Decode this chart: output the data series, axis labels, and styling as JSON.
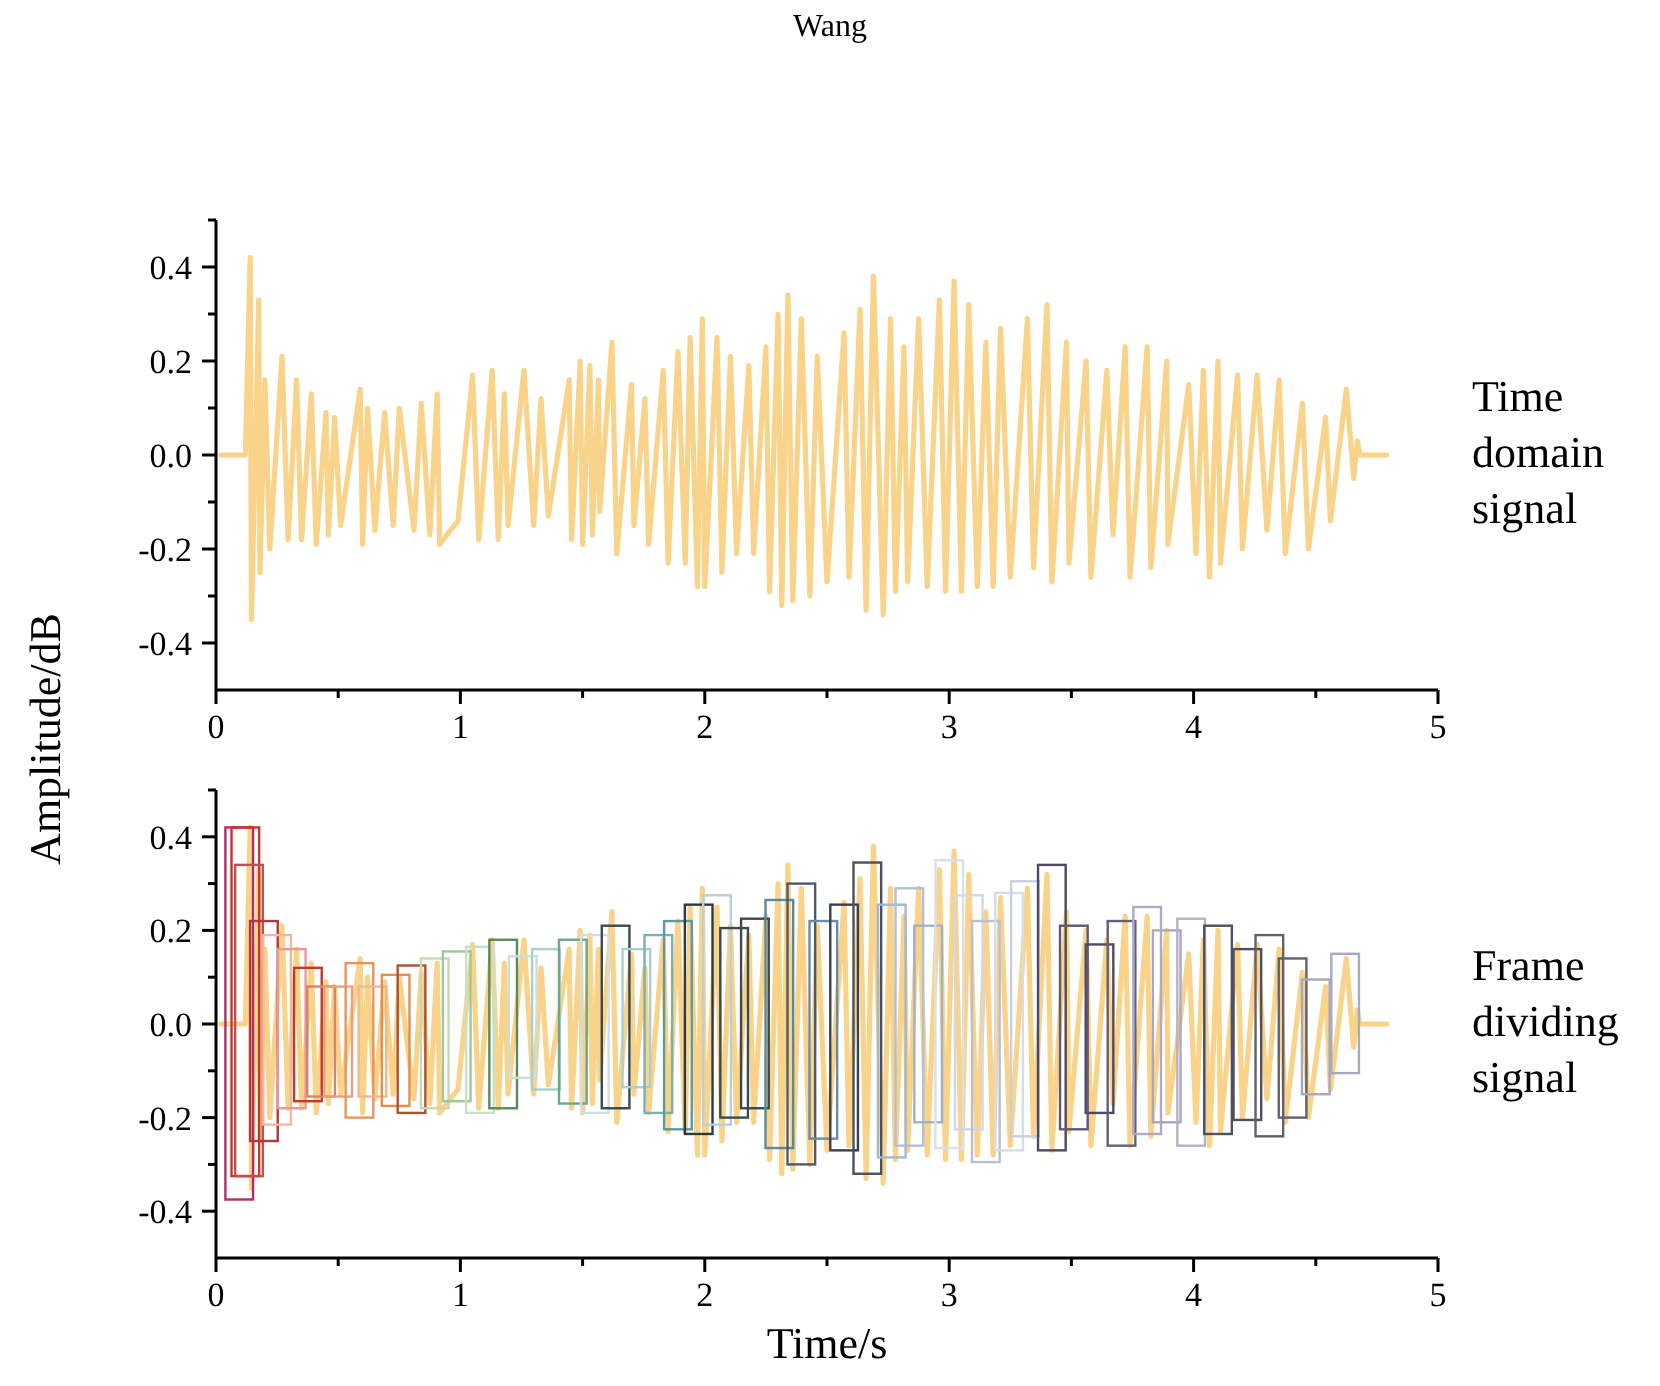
{
  "chart_data": [
    {
      "type": "line",
      "title": "Wang",
      "ylabel": "Amplitude/dB",
      "annotations": [
        "Time domain signal"
      ],
      "xlim": [
        0,
        5
      ],
      "xticks": [
        0,
        {
          "value": 0.5,
          "label": null
        },
        1,
        {
          "value": 1.5,
          "label": null
        },
        2,
        {
          "value": 2.5,
          "label": null
        },
        3,
        {
          "value": 3.5,
          "label": null
        },
        4,
        {
          "value": 4.5,
          "label": null
        },
        5
      ],
      "ylim": [
        -0.5,
        0.5
      ],
      "yticks": [
        -0.4,
        {
          "value": -0.3,
          "label": null
        },
        -0.2,
        {
          "value": -0.1,
          "label": null
        },
        {
          "value": 0,
          "label": "0.0"
        },
        {
          "value": 0.1,
          "label": null
        },
        0.2,
        {
          "value": 0.3,
          "label": null
        },
        0.4,
        {
          "value": 0.5,
          "label": null
        }
      ],
      "grid": false,
      "series": [
        {
          "color": "#f9d38a",
          "x": [
            0.02,
            0.12,
            0.14,
            0.145,
            0.175,
            0.18,
            0.2,
            0.22,
            0.27,
            0.295,
            0.33,
            0.35,
            0.39,
            0.41,
            0.45,
            0.46,
            0.485,
            0.51,
            0.59,
            0.6,
            0.62,
            0.65,
            0.69,
            0.725,
            0.75,
            0.81,
            0.84,
            0.875,
            0.905,
            0.915,
            0.99,
            1.05,
            1.075,
            1.13,
            1.155,
            1.18,
            1.195,
            1.26,
            1.3,
            1.33,
            1.36,
            1.445,
            1.455,
            1.49,
            1.5,
            1.53,
            1.54,
            1.565,
            1.57,
            1.62,
            1.64,
            1.7,
            1.71,
            1.755,
            1.77,
            1.83,
            1.85,
            1.89,
            1.92,
            1.94,
            1.97,
            1.99,
            2,
            2.05,
            2.07,
            2.105,
            2.13,
            2.18,
            2.2,
            2.25,
            2.265,
            2.3,
            2.315,
            2.34,
            2.36,
            2.395,
            2.43,
            2.46,
            2.5,
            2.57,
            2.59,
            2.635,
            2.66,
            2.69,
            2.73,
            2.76,
            2.78,
            2.815,
            2.83,
            2.875,
            2.91,
            2.96,
            2.985,
            3.02,
            3.05,
            3.08,
            3.115,
            3.15,
            3.18,
            3.21,
            3.25,
            3.32,
            3.345,
            3.4,
            3.42,
            3.48,
            3.49,
            3.56,
            3.58,
            3.645,
            3.67,
            3.72,
            3.74,
            3.81,
            3.825,
            3.89,
            3.895,
            3.98,
            4.01,
            4.04,
            4.065,
            4.1,
            4.11,
            4.18,
            4.2,
            4.26,
            4.3,
            4.35,
            4.375,
            4.445,
            4.47,
            4.54,
            4.56,
            4.625,
            4.655,
            4.67,
            4.68,
            4.79
          ],
          "values": [
            0,
            0,
            0.42,
            -0.35,
            0.33,
            -0.25,
            0.16,
            -0.2,
            0.21,
            -0.18,
            0.16,
            -0.18,
            0.13,
            -0.19,
            0.09,
            -0.17,
            0.08,
            -0.15,
            0.14,
            -0.19,
            0.1,
            -0.16,
            0.09,
            -0.15,
            0.1,
            -0.16,
            0.11,
            -0.17,
            0.13,
            -0.19,
            -0.14,
            0.17,
            -0.18,
            0.18,
            -0.18,
            0.13,
            -0.15,
            0.18,
            -0.15,
            0.12,
            -0.13,
            0.16,
            -0.18,
            0.2,
            -0.19,
            0.19,
            -0.17,
            0.16,
            -0.12,
            0.24,
            -0.21,
            0.15,
            -0.15,
            0.12,
            -0.19,
            0.18,
            -0.23,
            0.22,
            -0.23,
            0.25,
            -0.28,
            0.29,
            -0.28,
            0.25,
            -0.25,
            0.21,
            -0.21,
            0.19,
            -0.21,
            0.23,
            -0.29,
            0.3,
            -0.32,
            0.34,
            -0.31,
            0.29,
            -0.3,
            0.21,
            -0.27,
            0.26,
            -0.26,
            0.31,
            -0.33,
            0.38,
            -0.34,
            0.29,
            -0.29,
            0.23,
            -0.27,
            0.29,
            -0.28,
            0.33,
            -0.29,
            0.37,
            -0.29,
            0.32,
            -0.28,
            0.24,
            -0.28,
            0.27,
            -0.26,
            0.29,
            -0.24,
            0.32,
            -0.27,
            0.24,
            -0.23,
            0.2,
            -0.26,
            0.18,
            -0.17,
            0.23,
            -0.26,
            0.23,
            -0.24,
            0.2,
            -0.19,
            0.15,
            -0.21,
            0.18,
            -0.26,
            0.2,
            -0.23,
            0.17,
            -0.2,
            0.17,
            -0.16,
            0.16,
            -0.21,
            0.11,
            -0.2,
            0.08,
            -0.14,
            0.14,
            -0.05,
            0.03,
            0,
            0
          ]
        }
      ]
    },
    {
      "type": "line",
      "annotations": [
        "Frame dividing signal"
      ],
      "xlabel": "Time/s",
      "xlim": [
        0,
        5
      ],
      "xticks": [
        0,
        {
          "value": 0.5,
          "label": null
        },
        1,
        {
          "value": 1.5,
          "label": null
        },
        2,
        {
          "value": 2.5,
          "label": null
        },
        3,
        {
          "value": 3.5,
          "label": null
        },
        4,
        {
          "value": 4.5,
          "label": null
        },
        5
      ],
      "ylim": [
        -0.5,
        0.5
      ],
      "yticks": [
        -0.4,
        {
          "value": -0.3,
          "label": null
        },
        -0.2,
        {
          "value": -0.1,
          "label": null
        },
        {
          "value": 0,
          "label": "0.0"
        },
        {
          "value": 0.1,
          "label": null
        },
        0.2,
        {
          "value": 0.3,
          "label": null
        },
        0.4,
        {
          "value": 0.5,
          "label": null
        }
      ],
      "grid": false,
      "series": [
        {
          "color": "#f9d38a",
          "x": [
            0.02,
            0.12,
            0.14,
            0.145,
            0.175,
            0.18,
            0.2,
            0.22,
            0.27,
            0.295,
            0.33,
            0.35,
            0.39,
            0.41,
            0.45,
            0.46,
            0.485,
            0.51,
            0.59,
            0.6,
            0.62,
            0.65,
            0.69,
            0.725,
            0.75,
            0.81,
            0.84,
            0.875,
            0.905,
            0.915,
            0.99,
            1.05,
            1.075,
            1.13,
            1.155,
            1.18,
            1.195,
            1.26,
            1.3,
            1.33,
            1.36,
            1.445,
            1.455,
            1.49,
            1.5,
            1.53,
            1.54,
            1.565,
            1.57,
            1.62,
            1.64,
            1.7,
            1.71,
            1.755,
            1.77,
            1.83,
            1.85,
            1.89,
            1.92,
            1.94,
            1.97,
            1.99,
            2,
            2.05,
            2.07,
            2.105,
            2.13,
            2.18,
            2.2,
            2.25,
            2.265,
            2.3,
            2.315,
            2.34,
            2.36,
            2.395,
            2.43,
            2.46,
            2.5,
            2.57,
            2.59,
            2.635,
            2.66,
            2.69,
            2.73,
            2.76,
            2.78,
            2.815,
            2.83,
            2.875,
            2.91,
            2.96,
            2.985,
            3.02,
            3.05,
            3.08,
            3.115,
            3.15,
            3.18,
            3.21,
            3.25,
            3.32,
            3.345,
            3.4,
            3.42,
            3.48,
            3.49,
            3.56,
            3.58,
            3.645,
            3.67,
            3.72,
            3.74,
            3.81,
            3.825,
            3.89,
            3.895,
            3.98,
            4.01,
            4.04,
            4.065,
            4.1,
            4.11,
            4.18,
            4.2,
            4.26,
            4.3,
            4.35,
            4.375,
            4.445,
            4.47,
            4.54,
            4.56,
            4.625,
            4.655,
            4.67,
            4.68,
            4.79
          ],
          "values": [
            0,
            0,
            0.42,
            -0.35,
            0.33,
            -0.25,
            0.16,
            -0.2,
            0.21,
            -0.18,
            0.16,
            -0.18,
            0.13,
            -0.19,
            0.09,
            -0.17,
            0.08,
            -0.15,
            0.14,
            -0.19,
            0.1,
            -0.16,
            0.09,
            -0.15,
            0.1,
            -0.16,
            0.11,
            -0.17,
            0.13,
            -0.19,
            -0.14,
            0.17,
            -0.18,
            0.18,
            -0.18,
            0.13,
            -0.15,
            0.18,
            -0.15,
            0.12,
            -0.13,
            0.16,
            -0.18,
            0.2,
            -0.19,
            0.19,
            -0.17,
            0.16,
            -0.12,
            0.24,
            -0.21,
            0.15,
            -0.15,
            0.12,
            -0.19,
            0.18,
            -0.23,
            0.22,
            -0.23,
            0.25,
            -0.28,
            0.29,
            -0.28,
            0.25,
            -0.25,
            0.21,
            -0.21,
            0.19,
            -0.21,
            0.23,
            -0.29,
            0.3,
            -0.32,
            0.34,
            -0.31,
            0.29,
            -0.3,
            0.21,
            -0.27,
            0.26,
            -0.26,
            0.31,
            -0.33,
            0.38,
            -0.34,
            0.29,
            -0.29,
            0.23,
            -0.27,
            0.29,
            -0.28,
            0.33,
            -0.29,
            0.37,
            -0.29,
            0.32,
            -0.28,
            0.24,
            -0.28,
            0.27,
            -0.26,
            0.29,
            -0.24,
            0.32,
            -0.27,
            0.24,
            -0.23,
            0.2,
            -0.26,
            0.18,
            -0.17,
            0.23,
            -0.26,
            0.23,
            -0.24,
            0.2,
            -0.19,
            0.15,
            -0.21,
            0.18,
            -0.26,
            0.2,
            -0.23,
            0.17,
            -0.2,
            0.17,
            -0.16,
            0.16,
            -0.21,
            0.11,
            -0.2,
            0.08,
            -0.14,
            0.14,
            -0.05,
            0.03,
            0,
            0
          ]
        },
        {
          "type": "bar",
          "x": [
            0.095,
            0.12,
            0.135,
            0.196,
            0.25,
            0.31,
            0.376,
            0.43,
            0.5,
            0.587,
            0.64,
            0.735,
            0.8,
            0.895,
            0.985,
            1.08,
            1.175,
            1.255,
            1.35,
            1.46,
            1.55,
            1.635,
            1.72,
            1.81,
            1.89,
            1.975,
            2.05,
            2.12,
            2.205,
            2.305,
            2.395,
            2.485,
            2.57,
            2.665,
            2.765,
            2.837,
            2.914,
            3.0,
            3.08,
            3.15,
            3.245,
            3.31,
            3.42,
            3.51,
            3.615,
            3.705,
            3.81,
            3.89,
            3.99,
            4.1,
            4.22,
            4.31,
            4.405,
            4.5,
            4.62
          ],
          "base": [
            -0.375,
            -0.325,
            -0.325,
            -0.25,
            -0.215,
            -0.18,
            -0.165,
            -0.155,
            -0.155,
            -0.2,
            -0.155,
            -0.175,
            -0.19,
            -0.18,
            -0.165,
            -0.19,
            -0.18,
            -0.115,
            -0.14,
            -0.17,
            -0.19,
            -0.18,
            -0.135,
            -0.19,
            -0.225,
            -0.235,
            -0.215,
            -0.2,
            -0.18,
            -0.265,
            -0.3,
            -0.245,
            -0.27,
            -0.32,
            -0.285,
            -0.26,
            -0.21,
            -0.265,
            -0.225,
            -0.295,
            -0.27,
            -0.24,
            -0.27,
            -0.225,
            -0.19,
            -0.26,
            -0.235,
            -0.21,
            -0.26,
            -0.235,
            -0.205,
            -0.24,
            -0.2,
            -0.15,
            -0.105
          ],
          "values": [
            0.795,
            0.745,
            0.665,
            0.47,
            0.405,
            0.34,
            0.285,
            0.235,
            0.235,
            0.33,
            0.235,
            0.28,
            0.315,
            0.32,
            0.32,
            0.355,
            0.36,
            0.26,
            0.3,
            0.35,
            0.38,
            0.39,
            0.295,
            0.38,
            0.445,
            0.49,
            0.49,
            0.405,
            0.405,
            0.53,
            0.6,
            0.465,
            0.525,
            0.665,
            0.54,
            0.55,
            0.42,
            0.615,
            0.5,
            0.515,
            0.55,
            0.545,
            0.61,
            0.435,
            0.36,
            0.48,
            0.485,
            0.41,
            0.485,
            0.445,
            0.365,
            0.43,
            0.34,
            0.245,
            0.255
          ],
          "colors": [
            "#b0306a",
            "#c0392b",
            "#c0504d",
            "#b03a3a",
            "#f0b8a0",
            "#e89a9a",
            "#c0392b",
            "#d9826a",
            "#e8a080",
            "#e8955a",
            "#f0b890",
            "#e0904a",
            "#b05030",
            "#c8d8b0",
            "#9cc89c",
            "#c8e0c8",
            "#5a8a5a",
            "#c8e0d8",
            "#a8d0d0",
            "#6aa88a",
            "#d0e0e0",
            "#3a4a50",
            "#a8d0d0",
            "#7ab0b0",
            "#5a9aa0",
            "#2a3a40",
            "#b8d0d8",
            "#3a4a50",
            "#3a4a50",
            "#5a8a9a",
            "#4a5a6a",
            "#6a8aaa",
            "#3a4050",
            "#4a5060",
            "#a0b8d0",
            "#b0c0d8",
            "#a0b0c8",
            "#d8e0ec",
            "#d0d8e8",
            "#b8c0d0",
            "#d8dce8",
            "#c8d0e0",
            "#504860",
            "#605878",
            "#504868",
            "#606078",
            "#b0a8c8",
            "#a8a8c0",
            "#b8b0c8",
            "#505060",
            "#505060",
            "#606070",
            "#606070",
            "#a8a8b8",
            "#a8a8c0"
          ]
        }
      ]
    }
  ]
}
